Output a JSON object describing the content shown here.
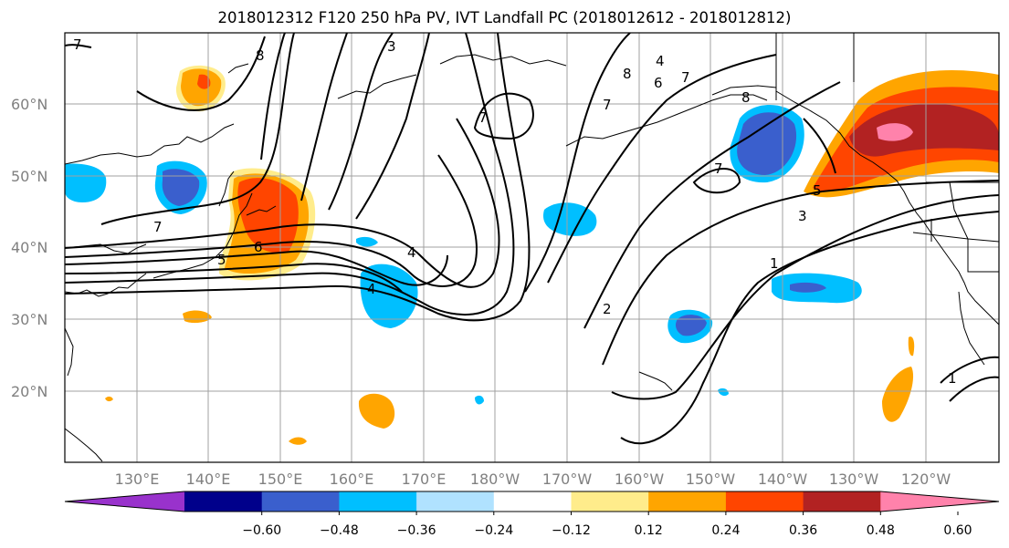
{
  "title": "2018012312 F120 250 hPa PV, IVT Landfall PC (2018012612 - 2018012812)",
  "lat_ticks": [
    "60°N",
    "50°N",
    "40°N",
    "30°N",
    "20°N"
  ],
  "lon_ticks": [
    "130°E",
    "140°E",
    "150°E",
    "160°E",
    "170°E",
    "180°W",
    "170°W",
    "160°W",
    "150°W",
    "140°W",
    "130°W",
    "120°W"
  ],
  "colorbar": {
    "labels": [
      "−0.60",
      "−0.48",
      "−0.36",
      "−0.24",
      "−0.12",
      "0.12",
      "0.24",
      "0.36",
      "0.48",
      "0.60"
    ],
    "colors": [
      "#9932cc",
      "#00008b",
      "#3a5fcd",
      "#00bfff",
      "#b0e2ff",
      "#ffffff",
      "#ffec8b",
      "#ffa500",
      "#ff4500",
      "#b22222",
      "#ff82ab"
    ]
  },
  "contour_labels": [
    "8",
    "3",
    "4",
    "6",
    "7",
    "8",
    "7",
    "7",
    "7",
    "6",
    "5",
    "4",
    "4",
    "2",
    "1",
    "1",
    "3",
    "5",
    "7",
    "8",
    "7"
  ],
  "colors": {
    "axis": "#000000",
    "grid": "#a0a0a0",
    "coast": "#000000",
    "contour": "#000000"
  }
}
